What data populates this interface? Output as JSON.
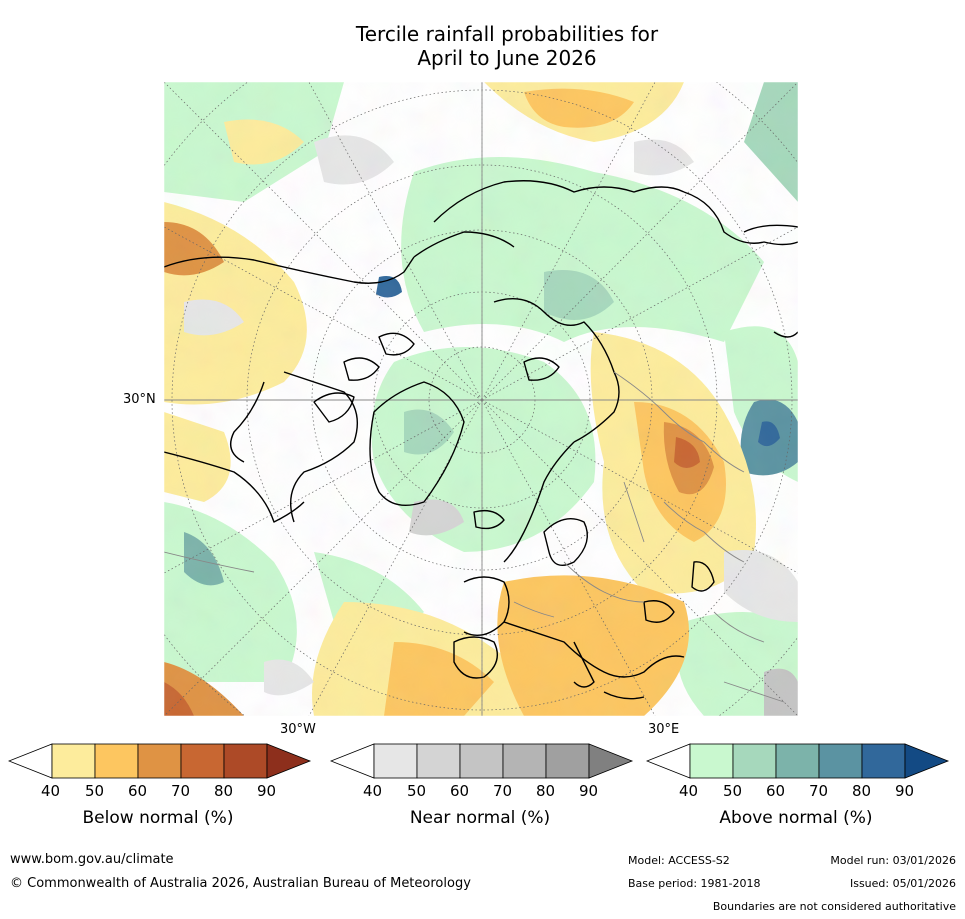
{
  "title": {
    "line1": "Tercile rainfall probabilities for",
    "line2": "April to June 2026"
  },
  "map": {
    "labels": {
      "lat30": "30°N",
      "lon_w": "30°W",
      "lon_e": "30°E"
    }
  },
  "colorbars": {
    "ticks": [
      "40",
      "50",
      "60",
      "70",
      "80",
      "90"
    ],
    "below": {
      "label": "Below normal (%)",
      "colors": [
        "#ffffff",
        "#fdec9c",
        "#fdc660",
        "#df9344",
        "#c86732",
        "#ad4a27",
        "#8d2f1c"
      ]
    },
    "near": {
      "label": "Near normal (%)",
      "colors": [
        "#ffffff",
        "#e6e6e6",
        "#d4d4d4",
        "#c4c4c4",
        "#b4b4b4",
        "#a0a0a0",
        "#808080"
      ]
    },
    "above": {
      "label": "Above normal (%)",
      "colors": [
        "#ffffff",
        "#c9f8cf",
        "#a6d8bc",
        "#7cb3aa",
        "#5b93a2",
        "#31689b",
        "#134a84"
      ]
    }
  },
  "footer": {
    "website": "www.bom.gov.au/climate",
    "copyright": "© Commonwealth of Australia 2026, Australian Bureau of Meteorology",
    "model": "Model: ACCESS-S2",
    "base_period": "Base period: 1981-2018",
    "model_run": "Model run: 03/01/2026",
    "issued": "Issued: 05/01/2026",
    "disclaimer": "Boundaries are not considered authoritative"
  }
}
